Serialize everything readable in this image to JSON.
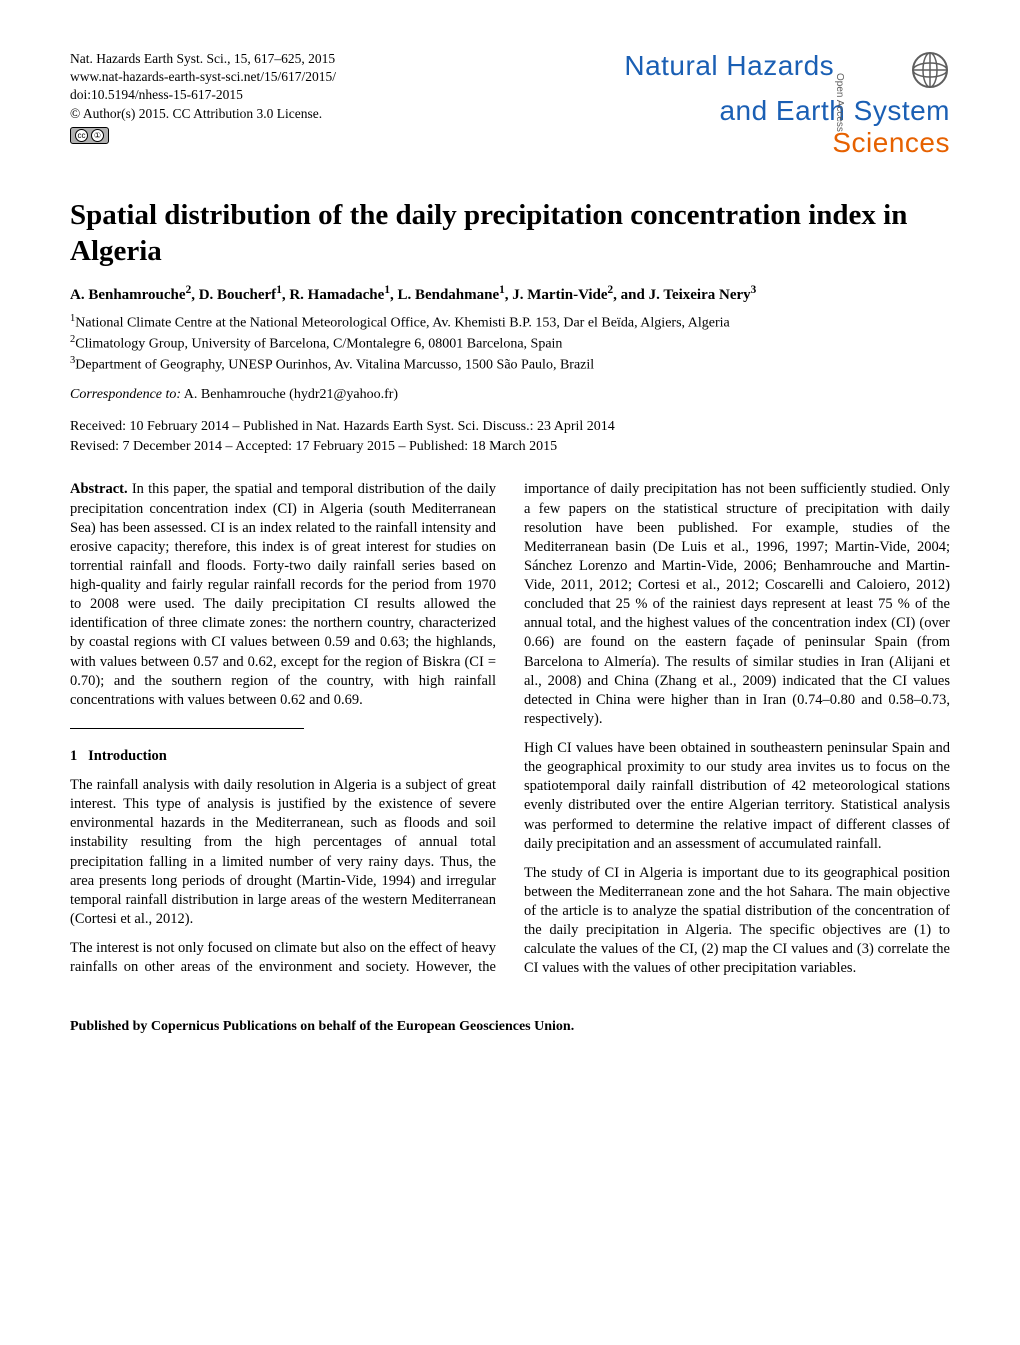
{
  "meta": {
    "citation": "Nat. Hazards Earth Syst. Sci., 15, 617–625, 2015",
    "url": "www.nat-hazards-earth-syst-sci.net/15/617/2015/",
    "doi": "doi:10.5194/nhess-15-617-2015",
    "copyright": "© Author(s) 2015. CC Attribution 3.0 License."
  },
  "journal": {
    "line1": "Natural Hazards",
    "line2": "and Earth System",
    "line3": "Sciences",
    "open_access": "Open Access"
  },
  "title": "Spatial distribution of the daily precipitation concentration index in Algeria",
  "authors_html": "A. Benhamrouche<sup>2</sup>, D. Boucherf<sup>1</sup>, R. Hamadache<sup>1</sup>, L. Bendahmane<sup>1</sup>, J. Martin-Vide<sup>2</sup>, and J. Teixeira Nery<sup>3</sup>",
  "affiliations": [
    "National Climate Centre at the National Meteorological Office, Av. Khemisti B.P. 153, Dar el Beïda, Algiers, Algeria",
    "Climatology Group, University of Barcelona, C/Montalegre 6, 08001 Barcelona, Spain",
    "Department of Geography, UNESP Ourinhos, Av. Vitalina Marcusso, 1500 São Paulo, Brazil"
  ],
  "correspondence": {
    "label": "Correspondence to:",
    "text": " A. Benhamrouche (hydr21@yahoo.fr)"
  },
  "dates": {
    "line1": "Received: 10 February 2014 – Published in Nat. Hazards Earth Syst. Sci. Discuss.: 23 April 2014",
    "line2": "Revised: 7 December 2014 – Accepted: 17 February 2015 – Published: 18 March 2015"
  },
  "abstract": {
    "label": "Abstract.",
    "text": " In this paper, the spatial and temporal distribution of the daily precipitation concentration index (CI) in Algeria (south Mediterranean Sea) has been assessed. CI is an index related to the rainfall intensity and erosive capacity; therefore, this index is of great interest for studies on torrential rainfall and floods. Forty-two daily rainfall series based on high-quality and fairly regular rainfall records for the period from 1970 to 2008 were used. The daily precipitation CI results allowed the identification of three climate zones: the northern country, characterized by coastal regions with CI values between 0.59 and 0.63; the highlands, with values between 0.57 and 0.62, except for the region of Biskra (CI = 0.70); and the southern region of the country, with high rainfall concentrations with values between 0.62 and 0.69."
  },
  "section1": {
    "num": "1",
    "title": "Introduction"
  },
  "body": {
    "p1": "The rainfall analysis with daily resolution in Algeria is a subject of great interest. This type of analysis is justified by the existence of severe environmental hazards in the Mediterranean, such as floods and soil instability resulting from the high percentages of annual total precipitation falling in a limited number of very rainy days. Thus, the area presents long periods of drought (Martin-Vide, 1994) and irregular temporal rainfall distribution in large areas of the western Mediterranean (Cortesi et al., 2012).",
    "p2": "The interest is not only focused on climate but also on the effect of heavy rainfalls on other areas of the environment and society. However, the importance of daily precipitation has not been sufficiently studied. Only a few papers on the statistical structure of precipitation with daily resolution have been published. For example, studies of the Mediterranean basin (De Luis et al., 1996, 1997; Martin-Vide, 2004; Sánchez Lorenzo and Martin-Vide, 2006; Benhamrouche and Martin-Vide, 2011, 2012; Cortesi et al., 2012; Coscarelli and Caloiero, 2012) concluded that 25 % of the rainiest days represent at least 75 % of the annual total, and the highest values of the concentration index (CI) (over 0.66) are found on the eastern façade of peninsular Spain (from Barcelona to Almería). The results of similar studies in Iran (Alijani et al., 2008) and China (Zhang et al., 2009) indicated that the CI values detected in China were higher than in Iran (0.74–0.80 and 0.58–0.73, respectively).",
    "p3": "High CI values have been obtained in southeastern peninsular Spain and the geographical proximity to our study area invites us to focus on the spatiotemporal daily rainfall distribution of 42 meteorological stations evenly distributed over the entire Algerian territory. Statistical analysis was performed to determine the relative impact of different classes of daily precipitation and an assessment of accumulated rainfall.",
    "p4": "The study of CI in Algeria is important due to its geographical position between the Mediterranean zone and the hot Sahara. The main objective of the article is to analyze the spatial distribution of the concentration of the daily precipitation in Algeria. The specific objectives are (1) to calculate the values of the CI, (2) map the CI values and (3) correlate the CI values with the values of other precipitation variables."
  },
  "footer": "Published by Copernicus Publications on behalf of the European Geosciences Union.",
  "colors": {
    "journal_blue": "#1a5fb4",
    "journal_orange": "#e66100",
    "text": "#000000",
    "background": "#ffffff",
    "badge_bg": "#b0b0b0"
  }
}
